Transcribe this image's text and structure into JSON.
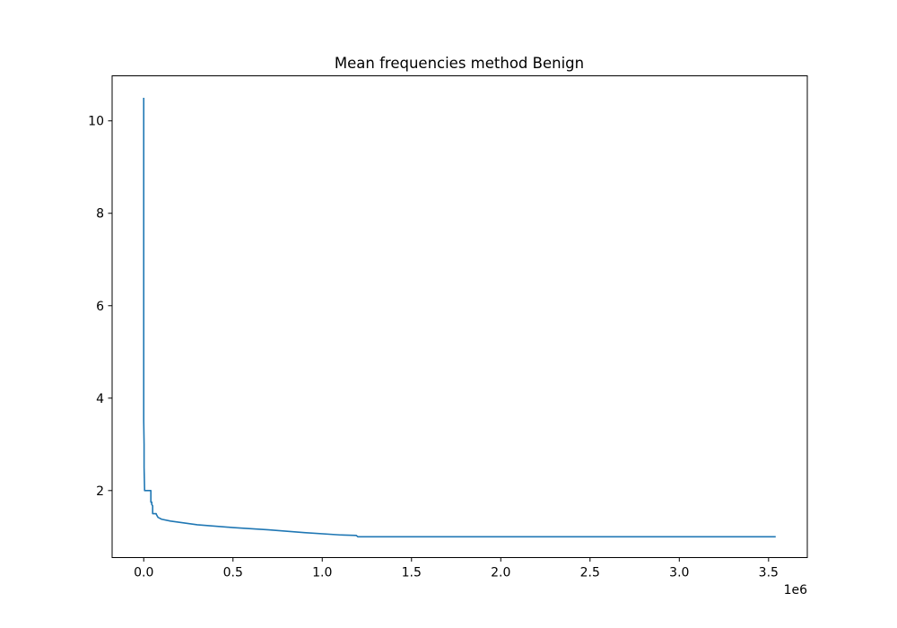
{
  "chart_data": {
    "type": "line",
    "title": "Mean frequencies method Benign",
    "xlabel": "",
    "ylabel": "",
    "x_offset_label": "1e6",
    "xlim": [
      -0.177,
      3.717
    ],
    "ylim": [
      0.55,
      10.975
    ],
    "x_ticks": [
      0.0,
      0.5,
      1.0,
      1.5,
      2.0,
      2.5,
      3.0,
      3.5
    ],
    "x_tick_labels": [
      "0.0",
      "0.5",
      "1.0",
      "1.5",
      "2.0",
      "2.5",
      "3.0",
      "3.5"
    ],
    "y_ticks": [
      2,
      4,
      6,
      8,
      10
    ],
    "y_tick_labels": [
      "2",
      "4",
      "6",
      "8",
      "10"
    ],
    "grid": false,
    "color": "#1f77b4",
    "series": [
      {
        "x": [
          0.0,
          0.0,
          0.002,
          0.002,
          0.005,
          0.005,
          0.04,
          0.04,
          0.045,
          0.045,
          0.05,
          0.05,
          0.07,
          0.07,
          0.08,
          0.09,
          0.1,
          0.15,
          0.3,
          0.5,
          0.7,
          0.9,
          1.1,
          1.19,
          1.2,
          2.0,
          3.0,
          3.54
        ],
        "y": [
          10.5,
          3.5,
          3.0,
          2.5,
          2.0,
          2.0,
          2.0,
          1.75,
          1.75,
          1.7,
          1.67,
          1.5,
          1.5,
          1.49,
          1.42,
          1.4,
          1.38,
          1.34,
          1.26,
          1.2,
          1.15,
          1.09,
          1.04,
          1.03,
          1.0,
          1.0,
          1.0,
          1.0
        ]
      }
    ]
  }
}
